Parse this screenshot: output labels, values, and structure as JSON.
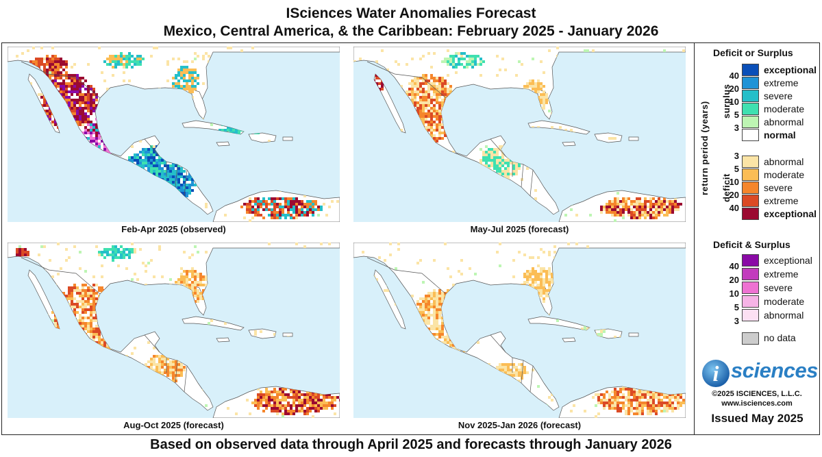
{
  "title_line1": "ISciences Water Anomalies Forecast",
  "title_line2": "Mexico, Central America, & the Caribbean: February 2025 - January 2026",
  "footer": "Based on observed data through April 2025 and forecasts through January 2026",
  "panels": [
    {
      "label": "Feb-Apr 2025 (observed)"
    },
    {
      "label": "May-Jul 2025 (forecast)"
    },
    {
      "label": "Aug-Oct 2025 (forecast)"
    },
    {
      "label": "Nov 2025-Jan 2026 (forecast)"
    }
  ],
  "legend": {
    "deficit_or_surplus_title": "Deficit or Surplus",
    "return_period_label": "return period (years)",
    "surplus_label": "surplus",
    "deficit_label": "deficit",
    "surplus": [
      {
        "label": "exceptional",
        "color": "#0a4fb8",
        "tick": "40"
      },
      {
        "label": "extreme",
        "color": "#1f93d6",
        "tick": "20"
      },
      {
        "label": "severe",
        "color": "#25bfc9",
        "tick": "10"
      },
      {
        "label": "moderate",
        "color": "#3fe0b0",
        "tick": "5"
      },
      {
        "label": "abnormal",
        "color": "#bdf5b3",
        "tick": "3"
      }
    ],
    "normal": {
      "label": "normal",
      "color": "#ffffff"
    },
    "deficit": [
      {
        "label": "abnormal",
        "color": "#fbe4a6",
        "tick": "3"
      },
      {
        "label": "moderate",
        "color": "#fbbd55",
        "tick": "5"
      },
      {
        "label": "severe",
        "color": "#f5862c",
        "tick": "10"
      },
      {
        "label": "extreme",
        "color": "#db4a25",
        "tick": "20"
      },
      {
        "label": "exceptional",
        "color": "#9b0a31",
        "tick": "40"
      }
    ],
    "both_title": "Deficit & Surplus",
    "both": [
      {
        "label": "exceptional",
        "color": "#8a0aa6",
        "tick": "40"
      },
      {
        "label": "extreme",
        "color": "#c23bbd",
        "tick": "20"
      },
      {
        "label": "severe",
        "color": "#ee72d2",
        "tick": "10"
      },
      {
        "label": "moderate",
        "color": "#f6b3e6",
        "tick": "5"
      },
      {
        "label": "abnormal",
        "color": "#fce0f3",
        "tick": "3"
      }
    ],
    "no_data": {
      "label": "no data",
      "color": "#cccccc"
    },
    "logo_text": "sciences",
    "logo_letter": "i",
    "copyright": "©2025 ISCIENCES, L.L.C.",
    "website": "www.isciences.com",
    "issued": "Issued May 2025"
  },
  "colors": {
    "ocean": "#d8f0fa",
    "land": "#ffffff",
    "border": "#555555"
  }
}
